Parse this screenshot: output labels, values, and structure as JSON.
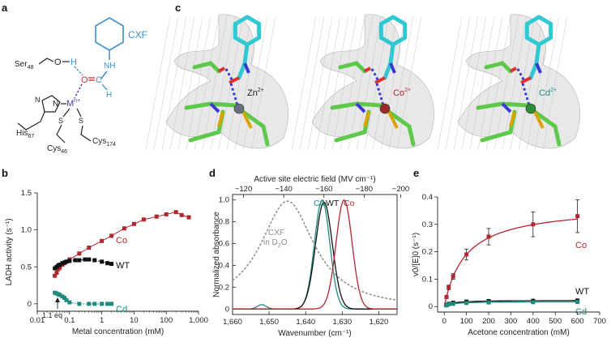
{
  "panel_letters": {
    "a": "a",
    "b": "b",
    "c": "c",
    "d": "d",
    "e": "e"
  },
  "panel_a": {
    "cxf": "CXF",
    "ser": "Ser",
    "ser_sub": "48",
    "o_ser": "O",
    "h_ser": "H",
    "nh": "NH",
    "o_carbonyl": "O",
    "c_carbonyl": "C",
    "h_formyl": "H",
    "metal": "M",
    "metal_sup": "n+",
    "n_his": "N",
    "n_ring": "N",
    "his": "His",
    "his_sub": "67",
    "s1": "S",
    "s2": "S",
    "cys1": "Cys",
    "cys1_sub": "46",
    "cys2": "Cys",
    "cys2_sub": "174"
  },
  "panel_c": {
    "labels": [
      {
        "ion": "Zn",
        "charge": "2+",
        "color": "#222222"
      },
      {
        "ion": "Co",
        "charge": "2+",
        "color": "#b3262f"
      },
      {
        "ion": "Cd",
        "charge": "2+",
        "color": "#1e8b7e"
      }
    ]
  },
  "colors": {
    "co": "#b3262f",
    "wt": "#111111",
    "cd": "#1e8b7e",
    "cxf": "#8c8c8c",
    "cxf_label": "#3b8fc8"
  },
  "chart_data": [
    {
      "type": "scatter",
      "panel": "b",
      "xlabel": "Metal concentration (mM)",
      "ylabel": "LADH activity (s⁻¹)",
      "xscale": "log",
      "xlim": [
        0.01,
        1000
      ],
      "ylim": [
        -0.1,
        1.5
      ],
      "xticks": [
        "0.01",
        "0.1",
        "1",
        "10",
        "100",
        "1,000"
      ],
      "yticks": [
        "0",
        "0.5",
        "1.0",
        "1.5"
      ],
      "annotation": "1.1 eq",
      "series": [
        {
          "name": "Co",
          "x": [
            0.035,
            0.04,
            0.045,
            0.05,
            0.06,
            0.07,
            0.08,
            0.1,
            0.2,
            0.4,
            1,
            2,
            5,
            10,
            20,
            50,
            100,
            200,
            300,
            500
          ],
          "y": [
            0.38,
            0.42,
            0.47,
            0.49,
            0.53,
            0.55,
            0.57,
            0.6,
            0.68,
            0.76,
            0.85,
            0.92,
            1.02,
            1.08,
            1.14,
            1.18,
            1.21,
            1.24,
            1.2,
            1.17
          ]
        },
        {
          "name": "WT",
          "x": [
            0.035,
            0.04,
            0.045,
            0.05,
            0.06,
            0.07,
            0.08,
            0.1,
            0.15,
            0.2,
            0.3,
            0.4,
            0.6,
            1,
            1.5,
            2
          ],
          "y": [
            0.48,
            0.5,
            0.52,
            0.53,
            0.55,
            0.56,
            0.57,
            0.58,
            0.59,
            0.59,
            0.6,
            0.6,
            0.59,
            0.57,
            0.55,
            0.54
          ]
        },
        {
          "name": "Cd",
          "x": [
            0.035,
            0.04,
            0.045,
            0.05,
            0.06,
            0.07,
            0.08,
            0.1,
            0.2,
            0.4,
            0.6,
            1,
            1.5,
            2
          ],
          "y": [
            0.15,
            0.14,
            0.13,
            0.12,
            0.1,
            0.08,
            0.05,
            0.02,
            0.0,
            0.0,
            0.0,
            0.0,
            0.0,
            0.0
          ]
        }
      ]
    },
    {
      "type": "line",
      "panel": "d",
      "xlabel": "Wavenumber (cm⁻¹)",
      "x2label": "Active site electric field (MV cm⁻¹)",
      "ylabel": "Normalized absorbance",
      "xlim": [
        1660,
        1615
      ],
      "ylim": [
        -0.05,
        1.05
      ],
      "xticks": [
        "1,660",
        "1,650",
        "1,640",
        "1,630",
        "1,620"
      ],
      "x2ticks": [
        "−120",
        "−140",
        "−160",
        "−180",
        "−200"
      ],
      "yticks": [
        "0",
        "0.2",
        "0.4",
        "0.6",
        "0.8",
        "1.0"
      ],
      "cxf_label": [
        "CXF",
        "in D",
        "2",
        "O"
      ],
      "series": [
        {
          "name": "Cd",
          "peak": 1635.5,
          "width": 2.1,
          "height": 1.0
        },
        {
          "name": "WT",
          "peak": 1635.0,
          "width": 2.3,
          "height": 0.98
        },
        {
          "name": "Co",
          "peak": 1629.5,
          "width": 2.2,
          "height": 1.0
        },
        {
          "name": "CXF in D2O",
          "peak": 1645.0,
          "width": 9.0,
          "height": 0.99
        }
      ]
    },
    {
      "type": "scatter",
      "panel": "e",
      "xlabel": "Acetone concentration (mM)",
      "ylabel": "v0/[E]0 (s⁻¹)",
      "xlim": [
        -30,
        700
      ],
      "ylim": [
        -0.02,
        0.4
      ],
      "xticks": [
        "0",
        "100",
        "200",
        "300",
        "400",
        "500",
        "600",
        "700"
      ],
      "yticks": [
        "0",
        "0.1",
        "0.2",
        "0.3",
        "0.4"
      ],
      "series": [
        {
          "name": "Co",
          "x": [
            10,
            20,
            40,
            100,
            200,
            400,
            600
          ],
          "y": [
            0.035,
            0.07,
            0.11,
            0.19,
            0.255,
            0.3,
            0.33
          ],
          "err": [
            0.005,
            0.008,
            0.01,
            0.02,
            0.03,
            0.045,
            0.06
          ]
        },
        {
          "name": "WT",
          "x": [
            10,
            20,
            40,
            100,
            200,
            400,
            600
          ],
          "y": [
            0.006,
            0.01,
            0.014,
            0.018,
            0.02,
            0.021,
            0.022
          ]
        },
        {
          "name": "Cd",
          "x": [
            10,
            20,
            40,
            100,
            200,
            400,
            600
          ],
          "y": [
            0.004,
            0.008,
            0.01,
            0.013,
            0.015,
            0.016,
            0.017
          ]
        }
      ]
    }
  ]
}
